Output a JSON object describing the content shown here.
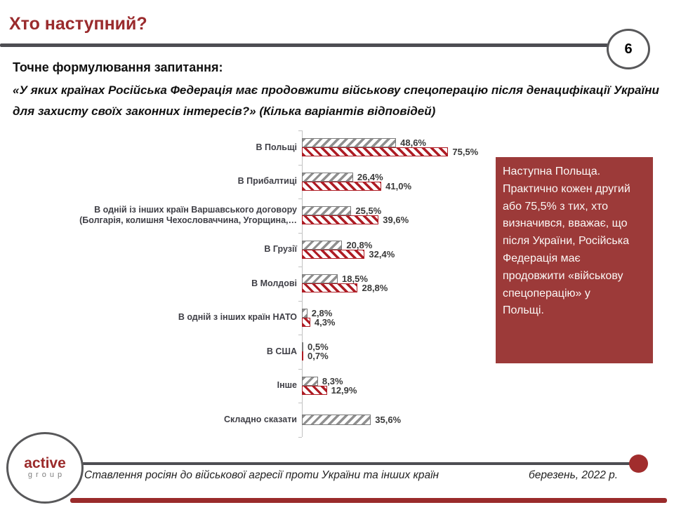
{
  "header": {
    "title": "Хто наступний?",
    "page_number": "6"
  },
  "question": {
    "label": "Точне формулювання запитання:",
    "text": "«У яких країнах Російська Федерація має продовжити військову спецоперацію після денацифікації України для захисту своїх законних інтересів?» (Кілька варіантів відповідей)"
  },
  "chart_data": {
    "type": "bar",
    "orientation": "horizontal",
    "value_unit": "%",
    "xlim": [
      0,
      80
    ],
    "grid": false,
    "legend": null,
    "series": [
      {
        "name": "gray-hatched-series",
        "values": [
          48.6,
          26.4,
          25.5,
          20.8,
          18.5,
          2.8,
          0.5,
          8.3,
          35.6
        ]
      },
      {
        "name": "red-hatched-series",
        "values": [
          75.5,
          41.0,
          39.6,
          32.4,
          28.8,
          4.3,
          0.7,
          12.9,
          null
        ]
      }
    ],
    "rows": [
      {
        "category": "В Польщі",
        "gray": 48.6,
        "red": 75.5,
        "gray_label": "48,6%",
        "red_label": "75,5%"
      },
      {
        "category": "В Прибалтиці",
        "gray": 26.4,
        "red": 41.0,
        "gray_label": "26,4%",
        "red_label": "41,0%"
      },
      {
        "category": "В одній із інших країн Варшавського договору (Болгарія, колишня Чехословаччина, Угорщина,…",
        "gray": 25.5,
        "red": 39.6,
        "gray_label": "25,5%",
        "red_label": "39,6%"
      },
      {
        "category": "В Грузії",
        "gray": 20.8,
        "red": 32.4,
        "gray_label": "20,8%",
        "red_label": "32,4%"
      },
      {
        "category": "В Молдові",
        "gray": 18.5,
        "red": 28.8,
        "gray_label": "18,5%",
        "red_label": "28,8%"
      },
      {
        "category": "В одній з інших країн НАТО",
        "gray": 2.8,
        "red": 4.3,
        "gray_label": "2,8%",
        "red_label": "4,3%"
      },
      {
        "category": "В США",
        "gray": 0.5,
        "red": 0.7,
        "gray_label": "0,5%",
        "red_label": "0,7%"
      },
      {
        "category": "Інше",
        "gray": 8.3,
        "red": 12.9,
        "gray_label": "8,3%",
        "red_label": "12,9%"
      },
      {
        "category": "Складно сказати",
        "gray": 35.6,
        "red": null,
        "gray_label": "35,6%",
        "red_label": null
      }
    ]
  },
  "callout": {
    "text": "Наступна Польща. Практично кожен другий або 75,5% з тих, хто визначився, вважає, що після України, Російська Федерація має продовжити «військову спецоперацію» у Польщі."
  },
  "footer": {
    "logo_line1": "active",
    "logo_line2": "group",
    "source": "Ставлення росіян до військової агресії проти України та інших країн",
    "date": "березень, 2022 р."
  },
  "colors": {
    "title_maroon": "#9A2B2D",
    "callout_bg": "#9C3A39",
    "bar_red": "#AE1C24",
    "bar_gray": "#8F8F8F",
    "rule_gray": "#4D4D52",
    "footer_dot_red": "#A12D2D"
  }
}
